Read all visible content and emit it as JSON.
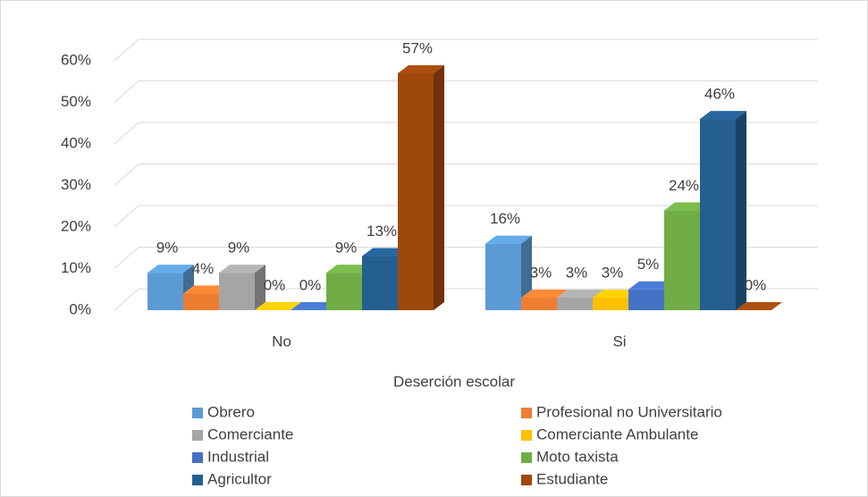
{
  "chart_data": {
    "type": "bar",
    "x_label": "Deserción escolar",
    "categories": [
      "No",
      "Si"
    ],
    "series": [
      {
        "name": "Obrero",
        "color": "#5b9bd5",
        "values": [
          9,
          16
        ],
        "value_labels": [
          "9%",
          "16%"
        ]
      },
      {
        "name": "Profesional no Universitario",
        "color": "#ed7d31",
        "values": [
          4,
          3
        ],
        "value_labels": [
          "4%",
          "3%"
        ]
      },
      {
        "name": "Comerciante",
        "color": "#a5a5a5",
        "values": [
          9,
          3
        ],
        "value_labels": [
          "9%",
          "3%"
        ]
      },
      {
        "name": "Comerciante Ambulante",
        "color": "#ffc000",
        "values": [
          0,
          3
        ],
        "value_labels": [
          "0%",
          "3%"
        ]
      },
      {
        "name": "Industrial",
        "color": "#4472c4",
        "values": [
          0,
          5
        ],
        "value_labels": [
          "0%",
          "5%"
        ]
      },
      {
        "name": "Moto taxista",
        "color": "#70ad47",
        "values": [
          9,
          24
        ],
        "value_labels": [
          "9%",
          "24%"
        ]
      },
      {
        "name": "Agricultor",
        "color": "#255e91",
        "values": [
          13,
          46
        ],
        "value_labels": [
          "13%",
          "46%"
        ]
      },
      {
        "name": "Estudiante",
        "color": "#9e480e",
        "values": [
          57,
          0
        ],
        "value_labels": [
          "57%",
          "0%"
        ]
      }
    ],
    "ylim": [
      0,
      60
    ],
    "yticks": [
      {
        "value": 0,
        "label": "0%"
      },
      {
        "value": 10,
        "label": "10%"
      },
      {
        "value": 20,
        "label": "20%"
      },
      {
        "value": 30,
        "label": "30%"
      },
      {
        "value": 40,
        "label": "40%"
      },
      {
        "value": 50,
        "label": "50%"
      },
      {
        "value": 60,
        "label": "60%"
      }
    ],
    "grid": true,
    "legend": "bottom"
  }
}
